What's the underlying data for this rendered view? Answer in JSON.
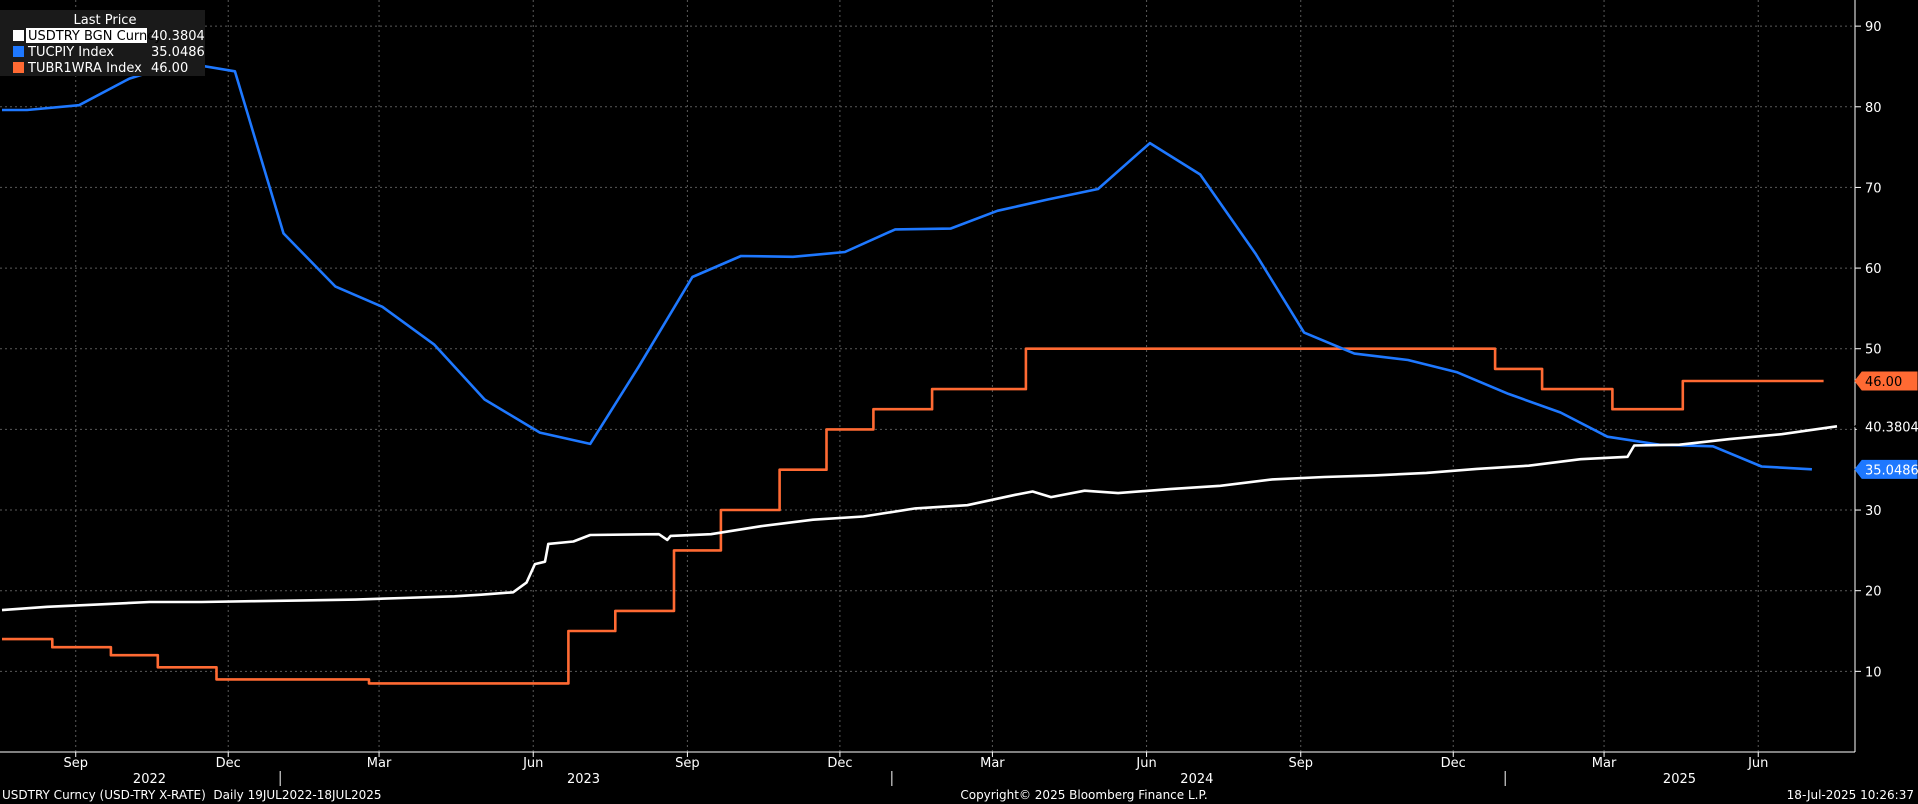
{
  "legend": {
    "title": "Last Price",
    "items": [
      {
        "label": "USDTRY BGN Curncy",
        "value": "40.3804",
        "color": "#ffffff",
        "boxed": true
      },
      {
        "label": "TUCPIY Index",
        "value": "35.0486",
        "color": "#1e78ff",
        "boxed": false
      },
      {
        "label": "TUBR1WRA Index",
        "value": "46.00",
        "color": "#ff6a33",
        "boxed": false
      }
    ]
  },
  "footer": {
    "left": "USDTRY Curncy (USD-TRY X-RATE)  Daily 19JUL2022-18JUL2025",
    "center": "Copyright© 2025 Bloomberg Finance L.P.",
    "right": "18-Jul-2025 10:26:37"
  },
  "chart_data": {
    "type": "line",
    "x_range": [
      "2022-07-19",
      "2025-07-18"
    ],
    "ylim": [
      0,
      92
    ],
    "y_ticks": [
      10,
      20,
      30,
      40,
      50,
      60,
      70,
      80,
      90
    ],
    "grid": true,
    "y_axis_side": "right",
    "month_ticks": [
      {
        "label": "Sep",
        "date": "2022-09-01"
      },
      {
        "label": "Dec",
        "date": "2022-12-01"
      },
      {
        "label": "Mar",
        "date": "2023-03-01"
      },
      {
        "label": "Jun",
        "date": "2023-06-01"
      },
      {
        "label": "Sep",
        "date": "2023-09-01"
      },
      {
        "label": "Dec",
        "date": "2023-12-01"
      },
      {
        "label": "Mar",
        "date": "2024-03-01"
      },
      {
        "label": "Jun",
        "date": "2024-06-01"
      },
      {
        "label": "Sep",
        "date": "2024-09-01"
      },
      {
        "label": "Dec",
        "date": "2024-12-01"
      },
      {
        "label": "Mar",
        "date": "2025-03-01"
      },
      {
        "label": "Jun",
        "date": "2025-06-01"
      }
    ],
    "year_labels": [
      {
        "label": "2022",
        "date": "2022-10-15"
      },
      {
        "label": "2023",
        "date": "2023-07-01"
      },
      {
        "label": "2024",
        "date": "2024-07-01"
      },
      {
        "label": "2025",
        "date": "2025-04-15"
      }
    ],
    "year_separators": [
      "2023-01-01",
      "2024-01-01",
      "2025-01-01"
    ],
    "series": [
      {
        "name": "USDTRY BGN Curncy",
        "color": "#ffffff",
        "last_label": "40.3804",
        "badge_bg": "#000000",
        "badge_fg": "#ffffff",
        "points": [
          [
            "2022-07-19",
            17.6
          ],
          [
            "2022-08-15",
            18.0
          ],
          [
            "2022-09-15",
            18.3
          ],
          [
            "2022-10-15",
            18.6
          ],
          [
            "2022-11-15",
            18.6
          ],
          [
            "2022-12-15",
            18.7
          ],
          [
            "2023-01-15",
            18.8
          ],
          [
            "2023-02-15",
            18.9
          ],
          [
            "2023-03-15",
            19.1
          ],
          [
            "2023-04-15",
            19.3
          ],
          [
            "2023-05-01",
            19.5
          ],
          [
            "2023-05-20",
            19.8
          ],
          [
            "2023-05-28",
            21.0
          ],
          [
            "2023-06-02",
            23.3
          ],
          [
            "2023-06-08",
            23.6
          ],
          [
            "2023-06-10",
            25.8
          ],
          [
            "2023-06-25",
            26.1
          ],
          [
            "2023-07-05",
            26.9
          ],
          [
            "2023-08-15",
            27.0
          ],
          [
            "2023-08-20",
            26.3
          ],
          [
            "2023-08-22",
            26.8
          ],
          [
            "2023-09-15",
            27.0
          ],
          [
            "2023-10-15",
            28.0
          ],
          [
            "2023-11-15",
            28.8
          ],
          [
            "2023-12-15",
            29.2
          ],
          [
            "2024-01-15",
            30.2
          ],
          [
            "2024-02-15",
            30.6
          ],
          [
            "2024-03-15",
            31.9
          ],
          [
            "2024-03-25",
            32.3
          ],
          [
            "2024-04-05",
            31.6
          ],
          [
            "2024-04-25",
            32.4
          ],
          [
            "2024-05-15",
            32.1
          ],
          [
            "2024-06-15",
            32.6
          ],
          [
            "2024-07-15",
            33.0
          ],
          [
            "2024-08-15",
            33.8
          ],
          [
            "2024-09-15",
            34.1
          ],
          [
            "2024-10-15",
            34.3
          ],
          [
            "2024-11-15",
            34.6
          ],
          [
            "2024-12-15",
            35.1
          ],
          [
            "2025-01-15",
            35.5
          ],
          [
            "2025-02-15",
            36.3
          ],
          [
            "2025-03-15",
            36.6
          ],
          [
            "2025-03-19",
            38.0
          ],
          [
            "2025-04-15",
            38.1
          ],
          [
            "2025-05-15",
            38.8
          ],
          [
            "2025-06-15",
            39.4
          ],
          [
            "2025-07-18",
            40.3804
          ]
        ]
      },
      {
        "name": "TUCPIY Index",
        "color": "#1e78ff",
        "last_label": "35.0486",
        "badge_bg": "#1e78ff",
        "badge_fg": "#ffffff",
        "points": [
          [
            "2022-07-19",
            79.6
          ],
          [
            "2022-08-03",
            79.6
          ],
          [
            "2022-09-03",
            80.2
          ],
          [
            "2022-10-03",
            83.5
          ],
          [
            "2022-11-03",
            85.5
          ],
          [
            "2022-12-05",
            84.4
          ],
          [
            "2023-01-03",
            64.3
          ],
          [
            "2023-02-03",
            57.7
          ],
          [
            "2023-03-03",
            55.2
          ],
          [
            "2023-04-03",
            50.5
          ],
          [
            "2023-05-03",
            43.7
          ],
          [
            "2023-06-05",
            39.6
          ],
          [
            "2023-07-05",
            38.2
          ],
          [
            "2023-08-03",
            47.8
          ],
          [
            "2023-09-04",
            58.9
          ],
          [
            "2023-10-03",
            61.5
          ],
          [
            "2023-11-03",
            61.4
          ],
          [
            "2023-12-04",
            62.0
          ],
          [
            "2024-01-03",
            64.8
          ],
          [
            "2024-02-05",
            64.9
          ],
          [
            "2024-03-04",
            67.1
          ],
          [
            "2024-04-03",
            68.5
          ],
          [
            "2024-05-03",
            69.8
          ],
          [
            "2024-06-03",
            75.5
          ],
          [
            "2024-07-03",
            71.6
          ],
          [
            "2024-08-05",
            61.8
          ],
          [
            "2024-09-03",
            52.0
          ],
          [
            "2024-10-03",
            49.4
          ],
          [
            "2024-11-04",
            48.6
          ],
          [
            "2024-12-03",
            47.1
          ],
          [
            "2025-01-03",
            44.4
          ],
          [
            "2025-02-03",
            42.1
          ],
          [
            "2025-03-03",
            39.1
          ],
          [
            "2025-04-03",
            38.1
          ],
          [
            "2025-05-05",
            37.9
          ],
          [
            "2025-06-03",
            35.4
          ],
          [
            "2025-07-03",
            35.0486
          ]
        ]
      },
      {
        "name": "TUBR1WRA Index",
        "color": "#ff6a33",
        "last_label": "46.00",
        "badge_bg": "#ff6a33",
        "badge_fg": "#000000",
        "step": true,
        "points": [
          [
            "2022-07-19",
            14.0
          ],
          [
            "2022-08-18",
            13.0
          ],
          [
            "2022-09-22",
            12.0
          ],
          [
            "2022-10-20",
            10.5
          ],
          [
            "2022-11-24",
            9.0
          ],
          [
            "2023-02-23",
            8.5
          ],
          [
            "2023-06-22",
            15.0
          ],
          [
            "2023-07-20",
            17.5
          ],
          [
            "2023-08-24",
            25.0
          ],
          [
            "2023-09-21",
            30.0
          ],
          [
            "2023-10-26",
            35.0
          ],
          [
            "2023-11-23",
            40.0
          ],
          [
            "2023-12-21",
            42.5
          ],
          [
            "2024-01-25",
            45.0
          ],
          [
            "2024-03-21",
            50.0
          ],
          [
            "2024-12-26",
            47.5
          ],
          [
            "2025-01-23",
            45.0
          ],
          [
            "2025-03-06",
            42.5
          ],
          [
            "2025-04-17",
            46.0
          ],
          [
            "2025-07-10",
            46.0
          ]
        ]
      }
    ]
  }
}
